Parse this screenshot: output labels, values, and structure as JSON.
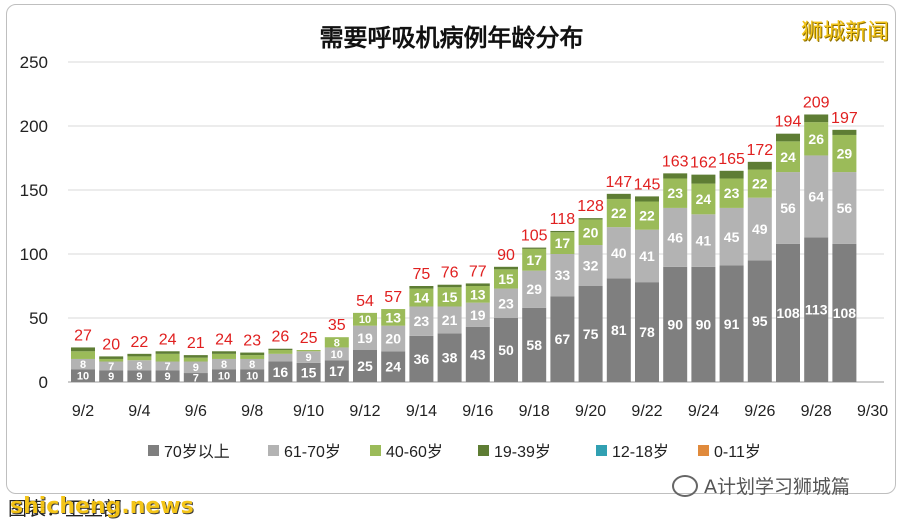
{
  "title": "需要呼吸机病例年龄分布",
  "watermark": "狮城新闻",
  "footer_caption": "图表：卫生部",
  "footer_source": "shicheng.news",
  "wechat_account": "A计划学习狮城篇",
  "chart_data": {
    "type": "bar",
    "stacked": true,
    "categories": [
      "9/2",
      "9/3",
      "9/4",
      "9/5",
      "9/6",
      "9/7",
      "9/8",
      "9/9",
      "9/10",
      "9/11",
      "9/12",
      "9/13",
      "9/14",
      "9/15",
      "9/16",
      "9/17",
      "9/18",
      "9/19",
      "9/20",
      "9/21",
      "9/22",
      "9/23",
      "9/24",
      "9/25",
      "9/26",
      "9/27",
      "9/28",
      "9/29"
    ],
    "x_tick_labels": [
      "9/2",
      "9/4",
      "9/6",
      "9/8",
      "9/10",
      "9/12",
      "9/14",
      "9/16",
      "9/18",
      "9/20",
      "9/22",
      "9/24",
      "9/26",
      "9/28",
      "9/30"
    ],
    "ylim": [
      0,
      250
    ],
    "y_ticks": [
      0,
      50,
      100,
      150,
      200,
      250
    ],
    "grid": true,
    "legend_position": "bottom",
    "series": [
      {
        "name": "70岁以上",
        "color": "#7f7f7f",
        "values": [
          10,
          9,
          9,
          9,
          7,
          10,
          10,
          16,
          15,
          17,
          25,
          24,
          36,
          38,
          43,
          50,
          58,
          67,
          75,
          81,
          78,
          90,
          90,
          91,
          95,
          108,
          113,
          108
        ]
      },
      {
        "name": "61-70岁",
        "color": "#b3b3b3",
        "values": [
          8,
          7,
          8,
          7,
          9,
          8,
          8,
          6,
          9,
          10,
          19,
          20,
          23,
          21,
          19,
          23,
          29,
          33,
          32,
          40,
          41,
          46,
          41,
          45,
          49,
          56,
          64,
          56
        ]
      },
      {
        "name": "40-60岁",
        "color": "#9bbb59",
        "values": [
          6,
          2,
          3,
          6,
          3,
          4,
          3,
          3,
          1,
          8,
          10,
          13,
          14,
          15,
          13,
          15,
          17,
          17,
          20,
          22,
          22,
          23,
          24,
          23,
          22,
          24,
          26,
          29
        ]
      },
      {
        "name": "19-39岁",
        "color": "#5e7d34",
        "values": [
          3,
          2,
          2,
          2,
          2,
          2,
          2,
          1,
          0,
          0,
          0,
          0,
          2,
          2,
          2,
          2,
          1,
          1,
          1,
          4,
          4,
          4,
          7,
          6,
          6,
          6,
          6,
          4
        ]
      },
      {
        "name": "12-18岁",
        "color": "#31a0b2",
        "values": [
          0,
          0,
          0,
          0,
          0,
          0,
          0,
          0,
          0,
          0,
          0,
          0,
          0,
          0,
          0,
          0,
          0,
          0,
          0,
          0,
          0,
          0,
          0,
          0,
          0,
          0,
          0,
          0
        ]
      },
      {
        "name": "0-11岁",
        "color": "#e08a3c",
        "values": [
          0,
          0,
          0,
          0,
          0,
          0,
          0,
          0,
          0,
          0,
          0,
          0,
          0,
          0,
          0,
          0,
          0,
          0,
          0,
          0,
          0,
          0,
          0,
          0,
          0,
          0,
          0,
          0
        ]
      }
    ],
    "totals": [
      27,
      20,
      22,
      24,
      21,
      24,
      23,
      26,
      25,
      35,
      54,
      57,
      75,
      76,
      77,
      90,
      105,
      118,
      128,
      147,
      145,
      163,
      162,
      165,
      172,
      194,
      209,
      197
    ]
  }
}
